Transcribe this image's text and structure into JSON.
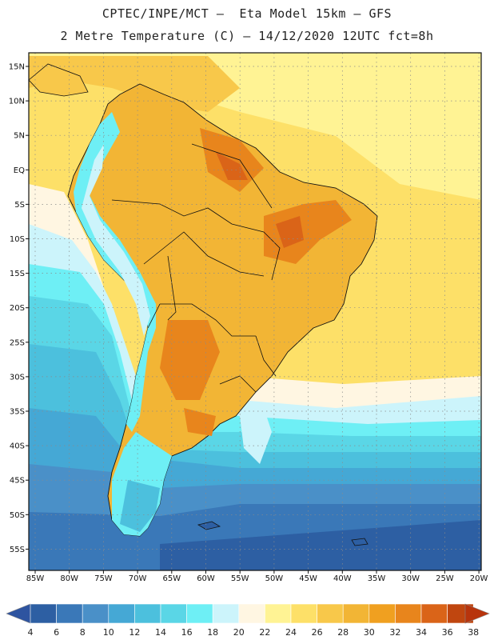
{
  "title": {
    "line1": "CPTEC/INPE/MCT –  Eta Model 15km – GFS",
    "line2": "2 Metre Temperature (C) – 14/12/2020 12UTC fct=8h"
  },
  "lat_labels": [
    "15N",
    "10N",
    "5N",
    "EQ",
    "5S",
    "10S",
    "15S",
    "20S",
    "25S",
    "30S",
    "35S",
    "40S",
    "45S",
    "50S",
    "55S"
  ],
  "lon_labels": [
    "85W",
    "80W",
    "75W",
    "70W",
    "65W",
    "60W",
    "55W",
    "50W",
    "45W",
    "40W",
    "35W",
    "30W",
    "25W",
    "20W"
  ],
  "colorbar": {
    "labels": [
      "4",
      "6",
      "8",
      "10",
      "12",
      "14",
      "16",
      "18",
      "20",
      "22",
      "24",
      "26",
      "28",
      "30",
      "32",
      "34",
      "36",
      "38"
    ],
    "colors": [
      "#2d5fa3",
      "#3a78b8",
      "#4a90c8",
      "#45a8d5",
      "#4cc0dd",
      "#5ad6e6",
      "#6eeff5",
      "#ccf4fb",
      "#fff6e2",
      "#fff394",
      "#fde068",
      "#f8c84a",
      "#f2b535",
      "#f0a020",
      "#e8851c",
      "#da6418",
      "#c0460f"
    ],
    "under_color": "#2e54a0",
    "over_color": "#b8340c"
  }
}
